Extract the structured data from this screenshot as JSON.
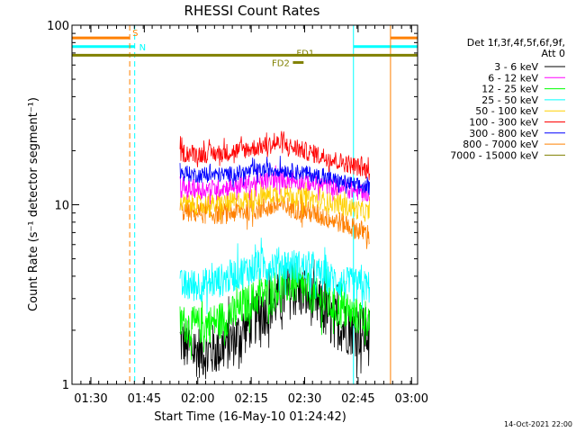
{
  "chart_data": {
    "type": "line",
    "title": "RHESSI Count Rates",
    "xlabel": "Start Time (16-May-10 01:24:42)",
    "ylabel": "Count Rate (s⁻¹ detector segment⁻¹)",
    "yscale": "log",
    "ylim": [
      1,
      100
    ],
    "xlim_minutes": [
      0,
      97
    ],
    "xticks": [
      {
        "label": "01:30",
        "minutes": 5.3
      },
      {
        "label": "01:45",
        "minutes": 20.3
      },
      {
        "label": "02:00",
        "minutes": 35.3
      },
      {
        "label": "02:15",
        "minutes": 50.3
      },
      {
        "label": "02:30",
        "minutes": 65.3
      },
      {
        "label": "02:45",
        "minutes": 80.3
      },
      {
        "label": "03:00",
        "minutes": 95.3
      }
    ],
    "yticks": [
      {
        "label": "1",
        "value": 1
      },
      {
        "label": "10",
        "value": 10
      },
      {
        "label": "100",
        "value": 100
      }
    ],
    "data_window_minutes": [
      30.3,
      83.5
    ],
    "legend": {
      "header1": "Det 1f,3f,4f,5f,6f,9f,",
      "header2": "Att 0",
      "position": "right"
    },
    "series": [
      {
        "name": "3 - 6 keV",
        "color": "#000000",
        "points": [
          [
            30.3,
            1.75
          ],
          [
            34,
            1.55
          ],
          [
            38,
            1.5
          ],
          [
            42,
            1.6
          ],
          [
            46,
            1.8
          ],
          [
            50,
            2.2
          ],
          [
            54,
            2.6
          ],
          [
            58,
            3.0
          ],
          [
            62,
            3.3
          ],
          [
            65,
            3.2
          ],
          [
            68,
            2.9
          ],
          [
            72,
            2.4
          ],
          [
            76,
            2.1
          ],
          [
            80,
            2.0
          ],
          [
            83.5,
            1.9
          ]
        ]
      },
      {
        "name": "6 - 12 keV",
        "color": "#ff00ff",
        "points": [
          [
            30.3,
            12.3
          ],
          [
            36,
            12.2
          ],
          [
            42,
            12.4
          ],
          [
            48,
            12.9
          ],
          [
            54,
            13.5
          ],
          [
            58,
            14.0
          ],
          [
            62,
            13.7
          ],
          [
            65,
            13.5
          ],
          [
            68,
            13.1
          ],
          [
            72,
            12.8
          ],
          [
            76,
            12.4
          ],
          [
            80,
            11.9
          ],
          [
            83.5,
            11.7
          ]
        ]
      },
      {
        "name": "12 - 25 keV",
        "color": "#00ff00",
        "points": [
          [
            30.3,
            2.2
          ],
          [
            34,
            2.1
          ],
          [
            38,
            2.15
          ],
          [
            42,
            2.3
          ],
          [
            46,
            2.5
          ],
          [
            50,
            2.9
          ],
          [
            54,
            3.2
          ],
          [
            58,
            3.45
          ],
          [
            62,
            3.6
          ],
          [
            65,
            3.4
          ],
          [
            68,
            3.1
          ],
          [
            72,
            2.8
          ],
          [
            76,
            2.55
          ],
          [
            80,
            2.4
          ],
          [
            83.5,
            2.35
          ]
        ]
      },
      {
        "name": "25 - 50 keV",
        "color": "#00ffff",
        "points": [
          [
            30.3,
            3.5
          ],
          [
            34,
            3.55
          ],
          [
            38,
            3.6
          ],
          [
            42,
            3.8
          ],
          [
            46,
            4.1
          ],
          [
            50,
            4.4
          ],
          [
            54,
            4.6
          ],
          [
            58,
            4.7
          ],
          [
            62,
            4.6
          ],
          [
            65,
            4.45
          ],
          [
            68,
            4.2
          ],
          [
            72,
            3.9
          ],
          [
            76,
            3.65
          ],
          [
            80,
            3.55
          ],
          [
            83.5,
            3.5
          ]
        ]
      },
      {
        "name": "50 - 100 keV",
        "color": "#ffd000",
        "points": [
          [
            30.3,
            10.2
          ],
          [
            36,
            10.0
          ],
          [
            42,
            10.1
          ],
          [
            48,
            10.6
          ],
          [
            54,
            11.2
          ],
          [
            58,
            11.6
          ],
          [
            62,
            11.3
          ],
          [
            65,
            11.0
          ],
          [
            68,
            10.8
          ],
          [
            72,
            10.4
          ],
          [
            76,
            9.9
          ],
          [
            80,
            9.4
          ],
          [
            83.5,
            9.0
          ]
        ]
      },
      {
        "name": "100 - 300 keV",
        "color": "#ff0000",
        "points": [
          [
            30.3,
            19.5
          ],
          [
            36,
            19.2
          ],
          [
            42,
            19.4
          ],
          [
            48,
            20.2
          ],
          [
            54,
            21.3
          ],
          [
            58,
            22.0
          ],
          [
            62,
            20.8
          ],
          [
            65,
            20.0
          ],
          [
            68,
            19.2
          ],
          [
            72,
            18.3
          ],
          [
            76,
            17.2
          ],
          [
            80,
            16.3
          ],
          [
            83.5,
            15.4
          ]
        ]
      },
      {
        "name": "300 - 800 keV",
        "color": "#0000ff",
        "points": [
          [
            30.3,
            15.0
          ],
          [
            36,
            14.6
          ],
          [
            42,
            14.7
          ],
          [
            48,
            15.1
          ],
          [
            54,
            15.6
          ],
          [
            58,
            15.8
          ],
          [
            62,
            15.4
          ],
          [
            65,
            15.1
          ],
          [
            68,
            14.6
          ],
          [
            72,
            14.0
          ],
          [
            76,
            13.4
          ],
          [
            80,
            12.8
          ],
          [
            83.5,
            12.4
          ]
        ]
      },
      {
        "name": "800 - 7000 keV",
        "color": "#ff8000",
        "points": [
          [
            30.3,
            9.3
          ],
          [
            36,
            9.0
          ],
          [
            42,
            8.9
          ],
          [
            48,
            9.2
          ],
          [
            54,
            9.6
          ],
          [
            58,
            9.9
          ],
          [
            62,
            9.6
          ],
          [
            65,
            9.3
          ],
          [
            68,
            8.9
          ],
          [
            72,
            8.4
          ],
          [
            76,
            7.9
          ],
          [
            80,
            7.3
          ],
          [
            83.5,
            6.8
          ]
        ]
      },
      {
        "name": "7000 - 15000 keV",
        "color": "#808000",
        "points": [
          [
            0,
            68
          ],
          [
            97,
            68
          ]
        ]
      }
    ],
    "annotations": [
      {
        "label": "S",
        "type": "SAA interval",
        "color": "#ff8000",
        "start_minutes": 0,
        "end_minutes": 16.2
      },
      {
        "label": "N",
        "type": "Night interval",
        "color": "#00ffff",
        "start_minutes": 0,
        "end_minutes": 17.6
      },
      {
        "label": "FD1",
        "type": "flare data",
        "color": "#808000",
        "minutes": 62.5
      },
      {
        "label": "FD2",
        "type": "flare data",
        "color": "#808000",
        "minutes": 61.6
      }
    ],
    "bars": [
      {
        "name": "saa-bar-left",
        "color": "#ff8000",
        "start_minutes": 0,
        "end_minutes": 16.2,
        "level": 85
      },
      {
        "name": "night-bar-left",
        "color": "#00ffff",
        "start_minutes": 0,
        "end_minutes": 17.6,
        "level": 76
      },
      {
        "name": "night-bar-right",
        "color": "#00ffff",
        "start_minutes": 79.0,
        "end_minutes": 97,
        "level": 76
      },
      {
        "name": "saa-bar-right",
        "color": "#ff8000",
        "start_minutes": 89.4,
        "end_minutes": 97,
        "level": 85
      },
      {
        "name": "fd-bar",
        "color": "#808000",
        "start_minutes": 62.0,
        "end_minutes": 65.0,
        "level": 62
      }
    ],
    "vlines": [
      {
        "name": "night-end-line",
        "color": "#00ffff",
        "dashed": false,
        "minutes": 0
      },
      {
        "name": "saa-end-line-left",
        "color": "#ff8000",
        "dashed": true,
        "minutes": 16.2
      },
      {
        "name": "night-start-line",
        "color": "#00ffff",
        "dashed": true,
        "minutes": 17.6
      },
      {
        "name": "night-boundary-line",
        "color": "#00ffff",
        "dashed": false,
        "minutes": 79.0
      },
      {
        "name": "saa-start-line-right",
        "color": "#ff8000",
        "dashed": false,
        "minutes": 89.4
      },
      {
        "name": "saa-end-line-right",
        "color": "#ff8000",
        "dashed": true,
        "minutes": 97
      }
    ],
    "timestamp": "14-Oct-2021 22:00"
  }
}
